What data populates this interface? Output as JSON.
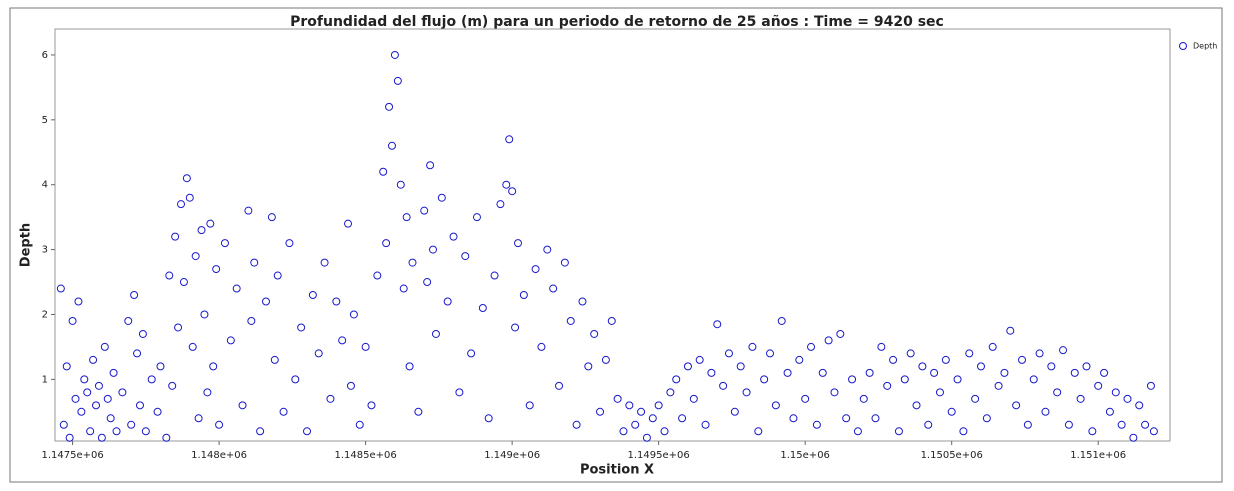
{
  "chart_data": {
    "type": "scatter",
    "title": "Profundidad del flujo (m) para un periodo de retorno de 25 años : Time = 9420 sec",
    "xlabel": "Position X",
    "ylabel": "Depth",
    "legend": "upper right",
    "xlim": [
      1147440,
      1151245
    ],
    "ylim": [
      0.05,
      6.4
    ],
    "xticks": [
      {
        "value": 1147500,
        "label": "1.1475e+06"
      },
      {
        "value": 1148000,
        "label": "1.148e+06"
      },
      {
        "value": 1148500,
        "label": "1.1485e+06"
      },
      {
        "value": 1149000,
        "label": "1.149e+06"
      },
      {
        "value": 1149500,
        "label": "1.1495e+06"
      },
      {
        "value": 1150000,
        "label": "1.15e+06"
      },
      {
        "value": 1150500,
        "label": "1.1505e+06"
      },
      {
        "value": 1151000,
        "label": "1.151e+06"
      }
    ],
    "yticks": [
      1,
      2,
      3,
      4,
      5,
      6
    ],
    "series": [
      {
        "name": "Depth",
        "color": "#1a1acc",
        "x": [
          1147460,
          1147470,
          1147480,
          1147490,
          1147500,
          1147510,
          1147520,
          1147530,
          1147540,
          1147550,
          1147560,
          1147570,
          1147580,
          1147590,
          1147600,
          1147610,
          1147620,
          1147630,
          1147640,
          1147650,
          1147670,
          1147690,
          1147700,
          1147710,
          1147720,
          1147730,
          1147740,
          1147750,
          1147770,
          1147790,
          1147800,
          1147820,
          1147830,
          1147840,
          1147850,
          1147860,
          1147870,
          1147880,
          1147890,
          1147900,
          1147910,
          1147920,
          1147930,
          1147940,
          1147950,
          1147960,
          1147970,
          1147980,
          1147990,
          1148000,
          1148020,
          1148040,
          1148060,
          1148080,
          1148100,
          1148110,
          1148120,
          1148140,
          1148160,
          1148180,
          1148190,
          1148200,
          1148220,
          1148240,
          1148260,
          1148280,
          1148300,
          1148320,
          1148340,
          1148360,
          1148380,
          1148400,
          1148420,
          1148440,
          1148450,
          1148460,
          1148480,
          1148500,
          1148520,
          1148540,
          1148560,
          1148570,
          1148580,
          1148590,
          1148600,
          1148610,
          1148620,
          1148630,
          1148640,
          1148650,
          1148660,
          1148680,
          1148700,
          1148710,
          1148720,
          1148730,
          1148740,
          1148760,
          1148780,
          1148800,
          1148820,
          1148840,
          1148860,
          1148880,
          1148900,
          1148920,
          1148940,
          1148960,
          1148980,
          1148990,
          1149000,
          1149010,
          1149020,
          1149040,
          1149060,
          1149080,
          1149100,
          1149120,
          1149140,
          1149160,
          1149180,
          1149200,
          1149220,
          1149240,
          1149260,
          1149280,
          1149300,
          1149320,
          1149340,
          1149360,
          1149380,
          1149400,
          1149420,
          1149440,
          1149460,
          1149480,
          1149500,
          1149520,
          1149540,
          1149560,
          1149580,
          1149600,
          1149620,
          1149640,
          1149660,
          1149680,
          1149700,
          1149720,
          1149740,
          1149760,
          1149780,
          1149800,
          1149820,
          1149840,
          1149860,
          1149880,
          1149900,
          1149920,
          1149940,
          1149960,
          1149980,
          1150000,
          1150020,
          1150040,
          1150060,
          1150080,
          1150100,
          1150120,
          1150140,
          1150160,
          1150180,
          1150200,
          1150220,
          1150240,
          1150260,
          1150280,
          1150300,
          1150320,
          1150340,
          1150360,
          1150380,
          1150400,
          1150420,
          1150440,
          1150460,
          1150480,
          1150500,
          1150520,
          1150540,
          1150560,
          1150580,
          1150600,
          1150620,
          1150640,
          1150660,
          1150680,
          1150700,
          1150720,
          1150740,
          1150760,
          1150780,
          1150800,
          1150820,
          1150840,
          1150860,
          1150880,
          1150900,
          1150920,
          1150940,
          1150960,
          1150980,
          1151000,
          1151020,
          1151040,
          1151060,
          1151080,
          1151100,
          1151120,
          1151140,
          1151160,
          1151180,
          1151190
        ],
        "values": [
          2.4,
          0.3,
          1.2,
          0.1,
          1.9,
          0.7,
          2.2,
          0.5,
          1.0,
          0.8,
          0.2,
          1.3,
          0.6,
          0.9,
          0.1,
          1.5,
          0.7,
          0.4,
          1.1,
          0.2,
          0.8,
          1.9,
          0.3,
          2.3,
          1.4,
          0.6,
          1.7,
          0.2,
          1.0,
          0.5,
          1.2,
          0.1,
          2.6,
          0.9,
          3.2,
          1.8,
          3.7,
          2.5,
          4.1,
          3.8,
          1.5,
          2.9,
          0.4,
          3.3,
          2.0,
          0.8,
          3.4,
          1.2,
          2.7,
          0.3,
          3.1,
          1.6,
          2.4,
          0.6,
          3.6,
          1.9,
          2.8,
          0.2,
          2.2,
          3.5,
          1.3,
          2.6,
          0.5,
          3.1,
          1.0,
          1.8,
          0.2,
          2.3,
          1.4,
          2.8,
          0.7,
          2.2,
          1.6,
          3.4,
          0.9,
          2.0,
          0.3,
          1.5,
          0.6,
          2.6,
          4.2,
          3.1,
          5.2,
          4.6,
          6.0,
          5.6,
          4.0,
          2.4,
          3.5,
          1.2,
          2.8,
          0.5,
          3.6,
          2.5,
          4.3,
          3.0,
          1.7,
          3.8,
          2.2,
          3.2,
          0.8,
          2.9,
          1.4,
          3.5,
          2.1,
          0.4,
          2.6,
          3.7,
          4.0,
          4.7,
          3.9,
          1.8,
          3.1,
          2.3,
          0.6,
          2.7,
          1.5,
          3.0,
          2.4,
          0.9,
          2.8,
          1.9,
          0.3,
          2.2,
          1.2,
          1.7,
          0.5,
          1.3,
          1.9,
          0.7,
          0.2,
          0.6,
          0.3,
          0.5,
          0.1,
          0.4,
          0.6,
          0.2,
          0.8,
          1.0,
          0.4,
          1.2,
          0.7,
          1.3,
          0.3,
          1.1,
          1.85,
          0.9,
          1.4,
          0.5,
          1.2,
          0.8,
          1.5,
          0.2,
          1.0,
          1.4,
          0.6,
          1.9,
          1.1,
          0.4,
          1.3,
          0.7,
          1.5,
          0.3,
          1.1,
          1.6,
          0.8,
          1.7,
          0.4,
          1.0,
          0.2,
          0.7,
          1.1,
          0.4,
          1.5,
          0.9,
          1.3,
          0.2,
          1.0,
          1.4,
          0.6,
          1.2,
          0.3,
          1.1,
          0.8,
          1.3,
          0.5,
          1.0,
          0.2,
          1.4,
          0.7,
          1.2,
          0.4,
          1.5,
          0.9,
          1.1,
          1.75,
          0.6,
          1.3,
          0.3,
          1.0,
          1.4,
          0.5,
          1.2,
          0.8,
          1.45,
          0.3,
          1.1,
          0.7,
          1.2,
          0.2,
          0.9,
          1.1,
          0.5,
          0.8,
          0.3,
          0.7,
          0.1,
          0.6,
          0.3,
          0.9,
          0.2
        ]
      }
    ]
  }
}
